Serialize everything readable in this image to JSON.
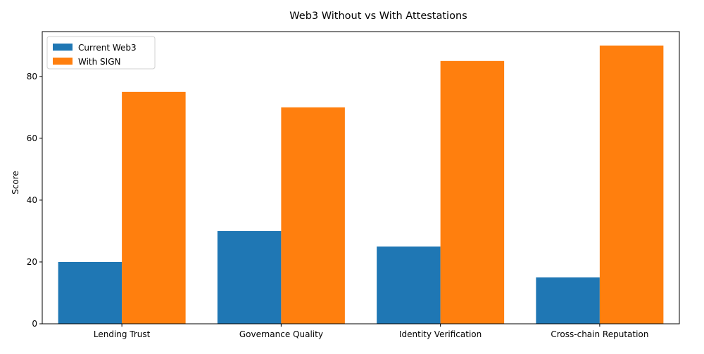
{
  "colors": {
    "series_1": "#1f77b4",
    "series_2": "#ff7f0e",
    "axis": "#000000",
    "background": "#ffffff"
  },
  "chart_data": {
    "type": "bar",
    "title": "Web3 Without vs With Attestations",
    "xlabel": "",
    "ylabel": "Score",
    "categories": [
      "Lending Trust",
      "Governance Quality",
      "Identity Verification",
      "Cross-chain Reputation"
    ],
    "series": [
      {
        "name": "Current Web3",
        "values": [
          20,
          30,
          25,
          15
        ]
      },
      {
        "name": "With SIGN",
        "values": [
          75,
          70,
          85,
          90
        ]
      }
    ],
    "ylim": [
      0,
      94.5
    ],
    "yticks": [
      0,
      20,
      40,
      60,
      80
    ],
    "grid": false,
    "legend": "top-left"
  }
}
